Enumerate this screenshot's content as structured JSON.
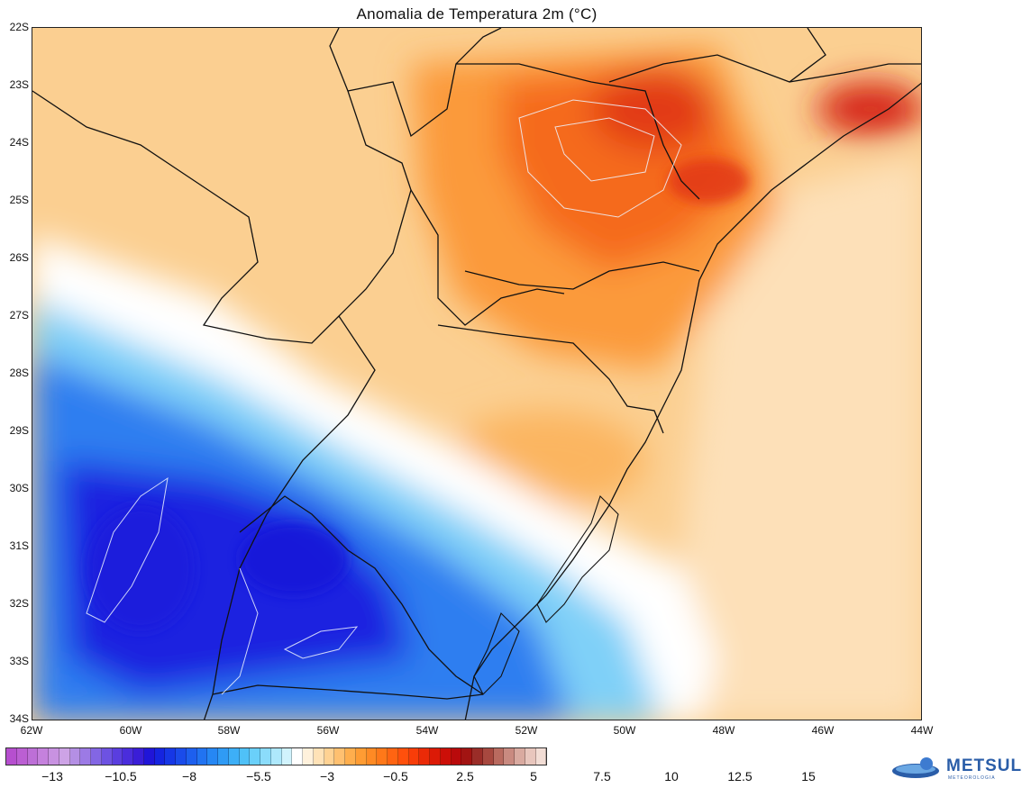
{
  "title": "Anomalia de Temperatura 2m (°C)",
  "latitude_labels": [
    "22S",
    "23S",
    "24S",
    "25S",
    "26S",
    "27S",
    "28S",
    "29S",
    "30S",
    "31S",
    "32S",
    "33S",
    "34S"
  ],
  "longitude_labels": [
    "62W",
    "60W",
    "58W",
    "56W",
    "54W",
    "52W",
    "50W",
    "48W",
    "46W",
    "44W"
  ],
  "colorbar": {
    "tick_labels": [
      "−13",
      "−10.5",
      "−8",
      "−5.5",
      "−3",
      "−0.5",
      "2.5",
      "5",
      "7.5",
      "10",
      "12.5",
      "15"
    ],
    "colors": [
      "#b64fcf",
      "#bb5fd3",
      "#bd6fd7",
      "#c581dd",
      "#c892e1",
      "#cda3e6",
      "#b48fe4",
      "#9c7ae5",
      "#8366e4",
      "#6d52e2",
      "#5a3edf",
      "#4a2ddc",
      "#3a1ed7",
      "#2015d8",
      "#1524e0",
      "#1637e6",
      "#1a4bea",
      "#1d5fee",
      "#2173f1",
      "#2687f4",
      "#2f9bf5",
      "#3daff7",
      "#4fc1f8",
      "#6ad0fa",
      "#8bdcfb",
      "#aee8fc",
      "#d1f3fd",
      "#ffffff",
      "#fff1dc",
      "#ffe2b7",
      "#ffd293",
      "#ffc070",
      "#ffae4d",
      "#ff9c33",
      "#ff8a24",
      "#ff7819",
      "#ff6412",
      "#ff500c",
      "#f83d09",
      "#ea2a07",
      "#dc1a06",
      "#cc0f08",
      "#b90a0b",
      "#a21412",
      "#9a2d28",
      "#a7483f",
      "#b96a5f",
      "#c98a80",
      "#d9aaa0",
      "#e8c6bd",
      "#f2ddd5"
    ]
  },
  "logo": {
    "name": "METSUL",
    "subtitle": "METEOROLOGIA"
  },
  "map": {
    "region": "Southern Brazil, Uruguay, northeastern Argentina, Paraguay",
    "colors": {
      "very_cold": "#1a22e0",
      "cold": "#2e7ef0",
      "cool": "#7fd0f8",
      "neutral": "#ffffff",
      "mild_warm": "#fde2b8",
      "warm": "#fbbf72",
      "hot": "#fb8f2e",
      "very_hot": "#f25a1e",
      "extreme": "#d4231a",
      "border": "#111111",
      "contour": "#e9f2ff"
    }
  }
}
